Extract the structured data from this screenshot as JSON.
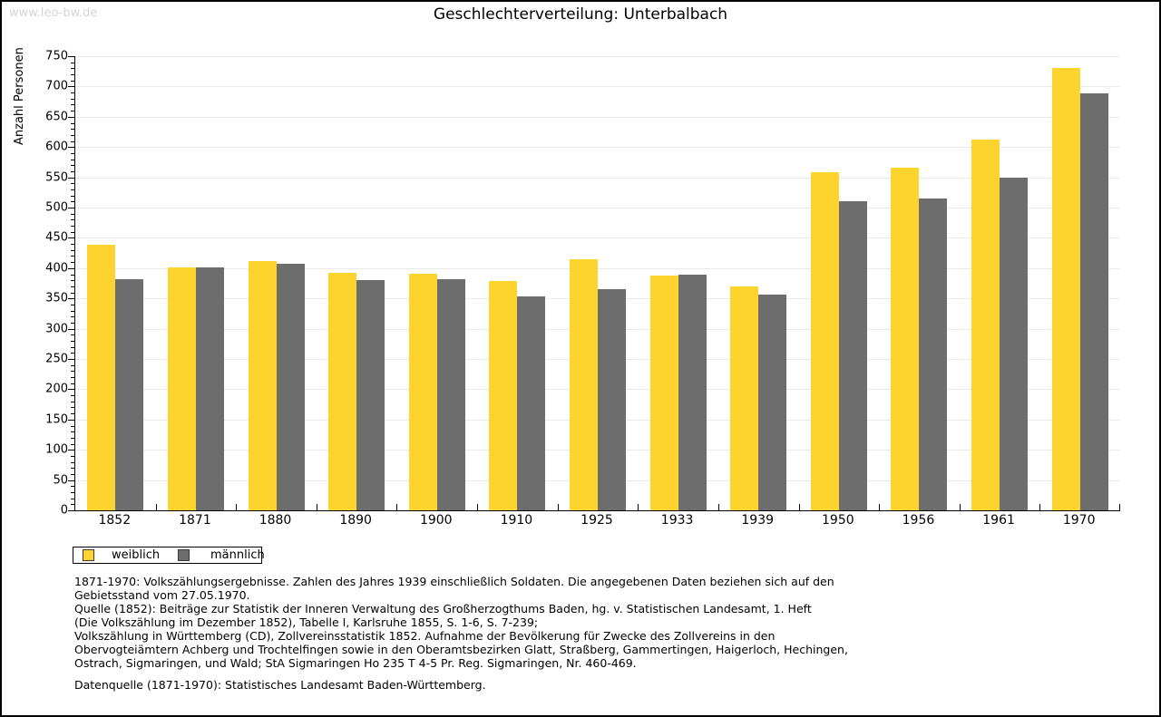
{
  "watermark": "www.leo-bw.de",
  "header": {
    "title": "Geschlechterverteilung: Unterbalbach"
  },
  "chart_data": {
    "type": "bar",
    "title": "Geschlechterverteilung: Unterbalbach",
    "xlabel": "",
    "ylabel": "Anzahl Personen",
    "ylim": [
      0,
      750
    ],
    "ytick_step": 50,
    "yminor_step": 10,
    "grid": true,
    "legend_position": "bottom-left",
    "categories": [
      "1852",
      "1871",
      "1880",
      "1890",
      "1900",
      "1910",
      "1925",
      "1933",
      "1939",
      "1950",
      "1956",
      "1961",
      "1970"
    ],
    "series": [
      {
        "name": "weiblich",
        "color": "#fdd32d",
        "values": [
          438,
          401,
          412,
          393,
          391,
          379,
          415,
          388,
          370,
          558,
          566,
          613,
          731
        ]
      },
      {
        "name": "männlich",
        "color": "#6d6d6d",
        "values": [
          382,
          401,
          408,
          381,
          382,
          354,
          365,
          389,
          357,
          511,
          515,
          550,
          689
        ]
      }
    ]
  },
  "legend": {
    "items": [
      {
        "label": "weiblich",
        "color": "#fdd32d"
      },
      {
        "label": "männlich",
        "color": "#6d6d6d"
      }
    ]
  },
  "footnotes": {
    "lines": [
      "1871-1970: Volkszählungsergebnisse. Zahlen des Jahres 1939 einschließlich Soldaten. Die angegebenen Daten beziehen sich auf den",
      "Gebietsstand vom 27.05.1970.",
      "Quelle (1852): Beiträge zur Statistik der Inneren Verwaltung des Großherzogthums Baden, hg. v. Statistischen Landesamt, 1. Heft",
      "(Die Volkszählung im Dezember 1852), Tabelle I, Karlsruhe 1855, S. 1-6, S. 7-239;",
      "Volkszählung in Württemberg (CD), Zollvereinsstatistik 1852. Aufnahme der Bevölkerung für Zwecke des Zollvereins in den",
      "Obervogteiämtern Achberg und Trochtelfingen sowie in den Oberamtsbezirken Glatt, Straßberg, Gammertingen, Haigerloch, Hechingen,",
      "Ostrach, Sigmaringen, und Wald; StA Sigmaringen Ho 235 T 4-5 Pr. Reg. Sigmaringen, Nr. 460-469."
    ],
    "datasource": "Datenquelle (1871-1970): Statistisches Landesamt Baden-Württemberg."
  },
  "colors": {
    "grid": "#e9e9e9",
    "axis": "#000000",
    "watermark": "#d5d5d5"
  }
}
